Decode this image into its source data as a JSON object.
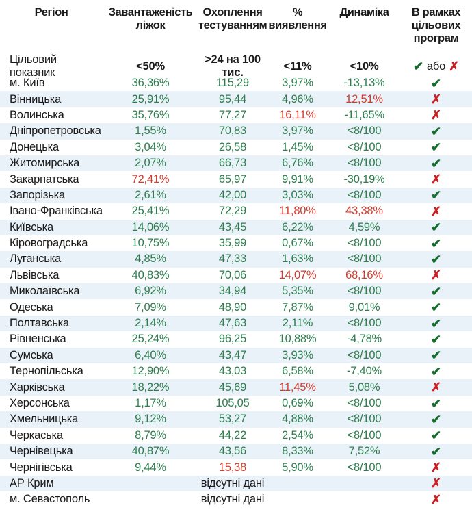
{
  "chart_data": {
    "type": "table",
    "columns": [
      "Регіон",
      "Завантаженість ліжок",
      "Охоплення тестуванням",
      "% виявлення",
      "Динаміка",
      "В рамках цільових програм"
    ],
    "target_row": {
      "label": "Цільовий показник",
      "beds": "<50%",
      "testing": ">24 на 100 тис.",
      "detection": "<11%",
      "dynamics": "<10%",
      "program_or": "або"
    },
    "rows": [
      {
        "region": "м. Київ",
        "beds": "36,36%",
        "beds_ok": true,
        "testing": "115,29",
        "testing_ok": true,
        "detection": "3,97%",
        "detection_ok": true,
        "dynamics": "-13,13%",
        "dynamics_ok": true,
        "meets_program": true
      },
      {
        "region": "Вінницька",
        "beds": "25,91%",
        "beds_ok": true,
        "testing": "95,44",
        "testing_ok": true,
        "detection": "4,96%",
        "detection_ok": true,
        "dynamics": "12,51%",
        "dynamics_ok": false,
        "meets_program": false
      },
      {
        "region": "Волинська",
        "beds": "35,76%",
        "beds_ok": true,
        "testing": "77,27",
        "testing_ok": true,
        "detection": "16,11%",
        "detection_ok": false,
        "dynamics": "-11,65%",
        "dynamics_ok": true,
        "meets_program": false
      },
      {
        "region": "Дніпропетровська",
        "beds": "1,55%",
        "beds_ok": true,
        "testing": "70,83",
        "testing_ok": true,
        "detection": "3,97%",
        "detection_ok": true,
        "dynamics": "<8/100",
        "dynamics_ok": true,
        "meets_program": true
      },
      {
        "region": "Донецька",
        "beds": "3,04%",
        "beds_ok": true,
        "testing": "26,58",
        "testing_ok": true,
        "detection": "1,45%",
        "detection_ok": true,
        "dynamics": "<8/100",
        "dynamics_ok": true,
        "meets_program": true
      },
      {
        "region": "Житомирська",
        "beds": "2,07%",
        "beds_ok": true,
        "testing": "66,73",
        "testing_ok": true,
        "detection": "6,76%",
        "detection_ok": true,
        "dynamics": "<8/100",
        "dynamics_ok": true,
        "meets_program": true
      },
      {
        "region": "Закарпатська",
        "beds": "72,41%",
        "beds_ok": false,
        "testing": "65,97",
        "testing_ok": true,
        "detection": "9,91%",
        "detection_ok": true,
        "dynamics": "-30,19%",
        "dynamics_ok": true,
        "meets_program": false
      },
      {
        "region": "Запорізька",
        "beds": "2,61%",
        "beds_ok": true,
        "testing": "42,00",
        "testing_ok": true,
        "detection": "3,03%",
        "detection_ok": true,
        "dynamics": "<8/100",
        "dynamics_ok": true,
        "meets_program": true
      },
      {
        "region": "Івано-Франківська",
        "beds": "25,41%",
        "beds_ok": true,
        "testing": "72,29",
        "testing_ok": true,
        "detection": "11,80%",
        "detection_ok": false,
        "dynamics": "43,38%",
        "dynamics_ok": false,
        "meets_program": false
      },
      {
        "region": "Київська",
        "beds": "14,06%",
        "beds_ok": true,
        "testing": "43,45",
        "testing_ok": true,
        "detection": "6,22%",
        "detection_ok": true,
        "dynamics": "4,59%",
        "dynamics_ok": true,
        "meets_program": true
      },
      {
        "region": "Кіровоградська",
        "beds": "10,75%",
        "beds_ok": true,
        "testing": "35,99",
        "testing_ok": true,
        "detection": "0,67%",
        "detection_ok": true,
        "dynamics": "<8/100",
        "dynamics_ok": true,
        "meets_program": true
      },
      {
        "region": "Луганська",
        "beds": "4,85%",
        "beds_ok": true,
        "testing": "47,33",
        "testing_ok": true,
        "detection": "1,63%",
        "detection_ok": true,
        "dynamics": "<8/100",
        "dynamics_ok": true,
        "meets_program": true
      },
      {
        "region": "Львівська",
        "beds": "40,83%",
        "beds_ok": true,
        "testing": "70,06",
        "testing_ok": true,
        "detection": "14,07%",
        "detection_ok": false,
        "dynamics": "68,16%",
        "dynamics_ok": false,
        "meets_program": false
      },
      {
        "region": "Миколаївська",
        "beds": "6,92%",
        "beds_ok": true,
        "testing": "34,94",
        "testing_ok": true,
        "detection": "5,35%",
        "detection_ok": true,
        "dynamics": "<8/100",
        "dynamics_ok": true,
        "meets_program": true
      },
      {
        "region": "Одеська",
        "beds": "7,09%",
        "beds_ok": true,
        "testing": "48,90",
        "testing_ok": true,
        "detection": "7,87%",
        "detection_ok": true,
        "dynamics": "9,01%",
        "dynamics_ok": true,
        "meets_program": true
      },
      {
        "region": "Полтавська",
        "beds": "2,14%",
        "beds_ok": true,
        "testing": "47,63",
        "testing_ok": true,
        "detection": "2,11%",
        "detection_ok": true,
        "dynamics": "<8/100",
        "dynamics_ok": true,
        "meets_program": true
      },
      {
        "region": "Рівненська",
        "beds": "25,24%",
        "beds_ok": true,
        "testing": "96,25",
        "testing_ok": true,
        "detection": "10,88%",
        "detection_ok": true,
        "dynamics": "-4,78%",
        "dynamics_ok": true,
        "meets_program": true
      },
      {
        "region": "Сумська",
        "beds": "6,40%",
        "beds_ok": true,
        "testing": "43,47",
        "testing_ok": true,
        "detection": "3,93%",
        "detection_ok": true,
        "dynamics": "<8/100",
        "dynamics_ok": true,
        "meets_program": true
      },
      {
        "region": "Тернопільська",
        "beds": "12,90%",
        "beds_ok": true,
        "testing": "43,03",
        "testing_ok": true,
        "detection": "6,58%",
        "detection_ok": true,
        "dynamics": "-7,40%",
        "dynamics_ok": true,
        "meets_program": true
      },
      {
        "region": "Харківська",
        "beds": "18,22%",
        "beds_ok": true,
        "testing": "45,69",
        "testing_ok": true,
        "detection": "11,45%",
        "detection_ok": false,
        "dynamics": "5,08%",
        "dynamics_ok": true,
        "meets_program": false
      },
      {
        "region": "Херсонська",
        "beds": "1,17%",
        "beds_ok": true,
        "testing": "105,05",
        "testing_ok": true,
        "detection": "0,69%",
        "detection_ok": true,
        "dynamics": "<8/100",
        "dynamics_ok": true,
        "meets_program": true
      },
      {
        "region": "Хмельницька",
        "beds": "9,12%",
        "beds_ok": true,
        "testing": "53,27",
        "testing_ok": true,
        "detection": "4,88%",
        "detection_ok": true,
        "dynamics": "<8/100",
        "dynamics_ok": true,
        "meets_program": true
      },
      {
        "region": "Черкаська",
        "beds": "8,79%",
        "beds_ok": true,
        "testing": "44,22",
        "testing_ok": true,
        "detection": "2,54%",
        "detection_ok": true,
        "dynamics": "<8/100",
        "dynamics_ok": true,
        "meets_program": true
      },
      {
        "region": "Чернівецька",
        "beds": "40,87%",
        "beds_ok": true,
        "testing": "43,56",
        "testing_ok": true,
        "detection": "8,33%",
        "detection_ok": true,
        "dynamics": "7,52%",
        "dynamics_ok": true,
        "meets_program": true
      },
      {
        "region": "Чернігівська",
        "beds": "9,44%",
        "beds_ok": true,
        "testing": "15,38",
        "testing_ok": false,
        "detection": "5,90%",
        "detection_ok": true,
        "dynamics": "<8/100",
        "dynamics_ok": true,
        "meets_program": false
      },
      {
        "region": "АР Крим",
        "no_data": "відсутні дані",
        "meets_program": false
      },
      {
        "region": "м. Севастополь",
        "no_data": "відсутні дані",
        "meets_program": false
      }
    ]
  },
  "icons": {
    "check": "✔",
    "cross": "✗"
  },
  "colors": {
    "green_value": "#2e7d4e",
    "red_value": "#d23c2e",
    "check_green": "#176d2d",
    "cross_red": "#cb1f24",
    "stripe_blue": "#e9f1f9",
    "text_black": "#1a1a1a"
  }
}
